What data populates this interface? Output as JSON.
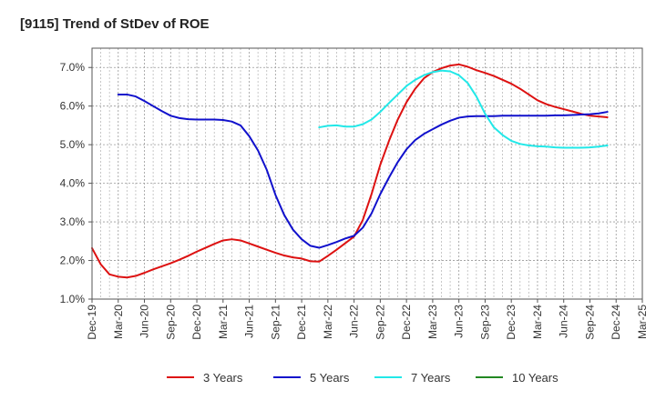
{
  "chart_data": {
    "type": "line",
    "title": "[9115]  Trend of StDev of ROE",
    "xlabel": "",
    "ylabel": "",
    "x_ticks": [
      "Dec-19",
      "Mar-20",
      "Jun-20",
      "Sep-20",
      "Dec-20",
      "Mar-21",
      "Jun-21",
      "Sep-21",
      "Dec-21",
      "Mar-22",
      "Jun-22",
      "Sep-22",
      "Dec-22",
      "Mar-23",
      "Jun-23",
      "Sep-23",
      "Dec-23",
      "Mar-24",
      "Jun-24",
      "Sep-24",
      "Dec-24",
      "Mar-25"
    ],
    "y_ticks": [
      "1.0%",
      "2.0%",
      "3.0%",
      "4.0%",
      "5.0%",
      "6.0%",
      "7.0%"
    ],
    "y_tick_values": [
      1,
      2,
      3,
      4,
      5,
      6,
      7
    ],
    "ylim": [
      1.0,
      7.5
    ],
    "grid": true,
    "legend_position": "bottom",
    "series": [
      {
        "name": "3 Years",
        "color": "#dd1111",
        "points": [
          [
            0,
            2.32
          ],
          [
            1,
            1.9
          ],
          [
            2,
            1.64
          ],
          [
            3,
            1.58
          ],
          [
            4,
            1.56
          ],
          [
            5,
            1.6
          ],
          [
            6,
            1.68
          ],
          [
            7,
            1.77
          ],
          [
            8,
            1.85
          ],
          [
            9,
            1.93
          ],
          [
            10,
            2.02
          ],
          [
            11,
            2.12
          ],
          [
            12,
            2.23
          ],
          [
            13,
            2.33
          ],
          [
            14,
            2.43
          ],
          [
            15,
            2.52
          ],
          [
            16,
            2.55
          ],
          [
            17,
            2.52
          ],
          [
            18,
            2.44
          ],
          [
            19,
            2.36
          ],
          [
            20,
            2.28
          ],
          [
            21,
            2.2
          ],
          [
            22,
            2.13
          ],
          [
            23,
            2.08
          ],
          [
            24,
            2.05
          ],
          [
            25,
            1.98
          ],
          [
            26,
            1.97
          ],
          [
            27,
            2.12
          ],
          [
            28,
            2.28
          ],
          [
            29,
            2.45
          ],
          [
            30,
            2.62
          ],
          [
            31,
            3.05
          ],
          [
            32,
            3.72
          ],
          [
            33,
            4.48
          ],
          [
            34,
            5.1
          ],
          [
            35,
            5.65
          ],
          [
            36,
            6.1
          ],
          [
            37,
            6.45
          ],
          [
            38,
            6.72
          ],
          [
            39,
            6.88
          ],
          [
            40,
            6.98
          ],
          [
            41,
            7.05
          ],
          [
            42,
            7.08
          ],
          [
            43,
            7.02
          ],
          [
            44,
            6.93
          ],
          [
            45,
            6.86
          ],
          [
            46,
            6.78
          ],
          [
            47,
            6.68
          ],
          [
            48,
            6.58
          ],
          [
            49,
            6.45
          ],
          [
            50,
            6.3
          ],
          [
            51,
            6.15
          ],
          [
            52,
            6.05
          ],
          [
            53,
            5.98
          ],
          [
            54,
            5.92
          ],
          [
            55,
            5.86
          ],
          [
            56,
            5.8
          ],
          [
            57,
            5.75
          ],
          [
            58,
            5.73
          ],
          [
            59,
            5.71
          ]
        ]
      },
      {
        "name": "5 Years",
        "color": "#1111cc",
        "points": [
          [
            3,
            6.3
          ],
          [
            4,
            6.3
          ],
          [
            5,
            6.25
          ],
          [
            6,
            6.13
          ],
          [
            7,
            6.0
          ],
          [
            8,
            5.87
          ],
          [
            9,
            5.75
          ],
          [
            10,
            5.69
          ],
          [
            11,
            5.66
          ],
          [
            12,
            5.65
          ],
          [
            13,
            5.65
          ],
          [
            14,
            5.65
          ],
          [
            15,
            5.64
          ],
          [
            16,
            5.6
          ],
          [
            17,
            5.5
          ],
          [
            18,
            5.22
          ],
          [
            19,
            4.85
          ],
          [
            20,
            4.35
          ],
          [
            21,
            3.7
          ],
          [
            22,
            3.18
          ],
          [
            23,
            2.8
          ],
          [
            24,
            2.55
          ],
          [
            25,
            2.38
          ],
          [
            26,
            2.33
          ],
          [
            27,
            2.4
          ],
          [
            28,
            2.48
          ],
          [
            29,
            2.57
          ],
          [
            30,
            2.64
          ],
          [
            31,
            2.85
          ],
          [
            32,
            3.22
          ],
          [
            33,
            3.72
          ],
          [
            34,
            4.15
          ],
          [
            35,
            4.55
          ],
          [
            36,
            4.88
          ],
          [
            37,
            5.12
          ],
          [
            38,
            5.28
          ],
          [
            39,
            5.4
          ],
          [
            40,
            5.52
          ],
          [
            41,
            5.62
          ],
          [
            42,
            5.7
          ],
          [
            43,
            5.73
          ],
          [
            44,
            5.74
          ],
          [
            45,
            5.74
          ],
          [
            46,
            5.74
          ],
          [
            47,
            5.75
          ],
          [
            48,
            5.75
          ],
          [
            49,
            5.75
          ],
          [
            50,
            5.75
          ],
          [
            51,
            5.75
          ],
          [
            52,
            5.75
          ],
          [
            53,
            5.76
          ],
          [
            54,
            5.76
          ],
          [
            55,
            5.77
          ],
          [
            56,
            5.78
          ],
          [
            57,
            5.79
          ],
          [
            58,
            5.81
          ],
          [
            59,
            5.85
          ]
        ]
      },
      {
        "name": "7 Years",
        "color": "#22e8e8",
        "points": [
          [
            26,
            5.45
          ],
          [
            27,
            5.49
          ],
          [
            28,
            5.5
          ],
          [
            29,
            5.47
          ],
          [
            30,
            5.47
          ],
          [
            31,
            5.53
          ],
          [
            32,
            5.65
          ],
          [
            33,
            5.85
          ],
          [
            34,
            6.08
          ],
          [
            35,
            6.3
          ],
          [
            36,
            6.52
          ],
          [
            37,
            6.68
          ],
          [
            38,
            6.8
          ],
          [
            39,
            6.88
          ],
          [
            40,
            6.92
          ],
          [
            41,
            6.9
          ],
          [
            42,
            6.8
          ],
          [
            43,
            6.6
          ],
          [
            44,
            6.25
          ],
          [
            45,
            5.8
          ],
          [
            46,
            5.45
          ],
          [
            47,
            5.25
          ],
          [
            48,
            5.1
          ],
          [
            49,
            5.02
          ],
          [
            50,
            4.98
          ],
          [
            51,
            4.96
          ],
          [
            52,
            4.95
          ],
          [
            53,
            4.93
          ],
          [
            54,
            4.92
          ],
          [
            55,
            4.92
          ],
          [
            56,
            4.92
          ],
          [
            57,
            4.93
          ],
          [
            58,
            4.95
          ],
          [
            59,
            4.98
          ]
        ]
      },
      {
        "name": "10 Years",
        "color": "#228822",
        "points": []
      }
    ]
  }
}
